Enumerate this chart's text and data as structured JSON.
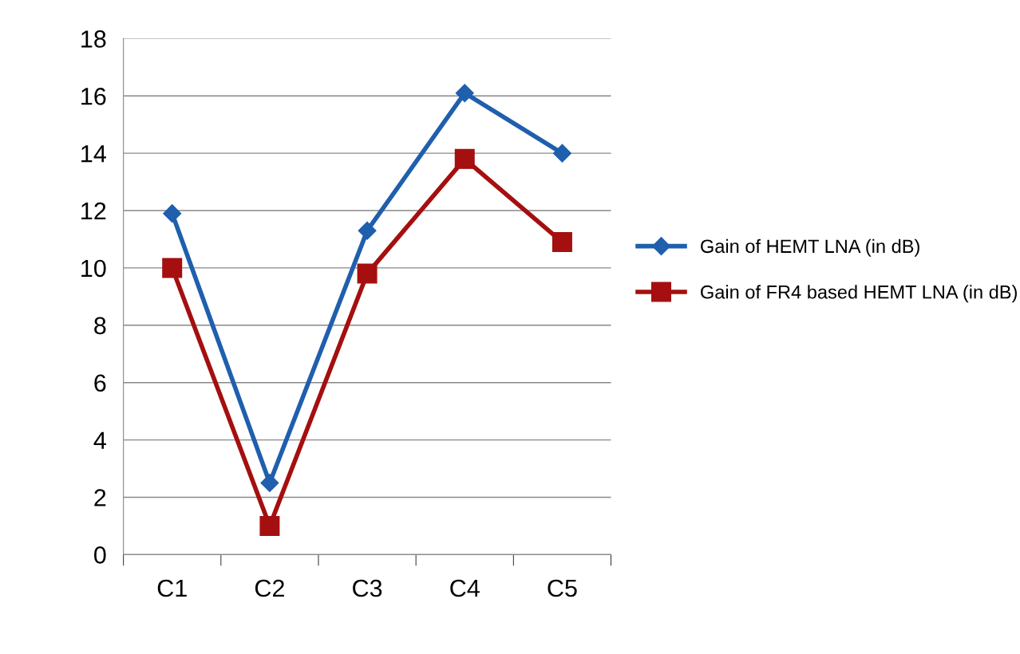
{
  "chart_data": {
    "type": "line",
    "categories": [
      "C1",
      "C2",
      "C3",
      "C4",
      "C5"
    ],
    "series": [
      {
        "name": "Gain of HEMT LNA (in dB)",
        "color": "#1f5fad",
        "values": [
          11.9,
          2.5,
          11.3,
          16.1,
          14.0
        ],
        "marker": "diamond"
      },
      {
        "name": "Gain of FR4 based HEMT LNA (in dB)",
        "color": "#a50f0f",
        "values": [
          10.0,
          1.0,
          9.8,
          13.8,
          10.9
        ],
        "marker": "square"
      }
    ],
    "ylim": [
      0,
      18
    ],
    "yticks": [
      0,
      2,
      4,
      6,
      8,
      10,
      12,
      14,
      16,
      18
    ],
    "grid": "y",
    "legend": "right",
    "line_style": "solid"
  }
}
